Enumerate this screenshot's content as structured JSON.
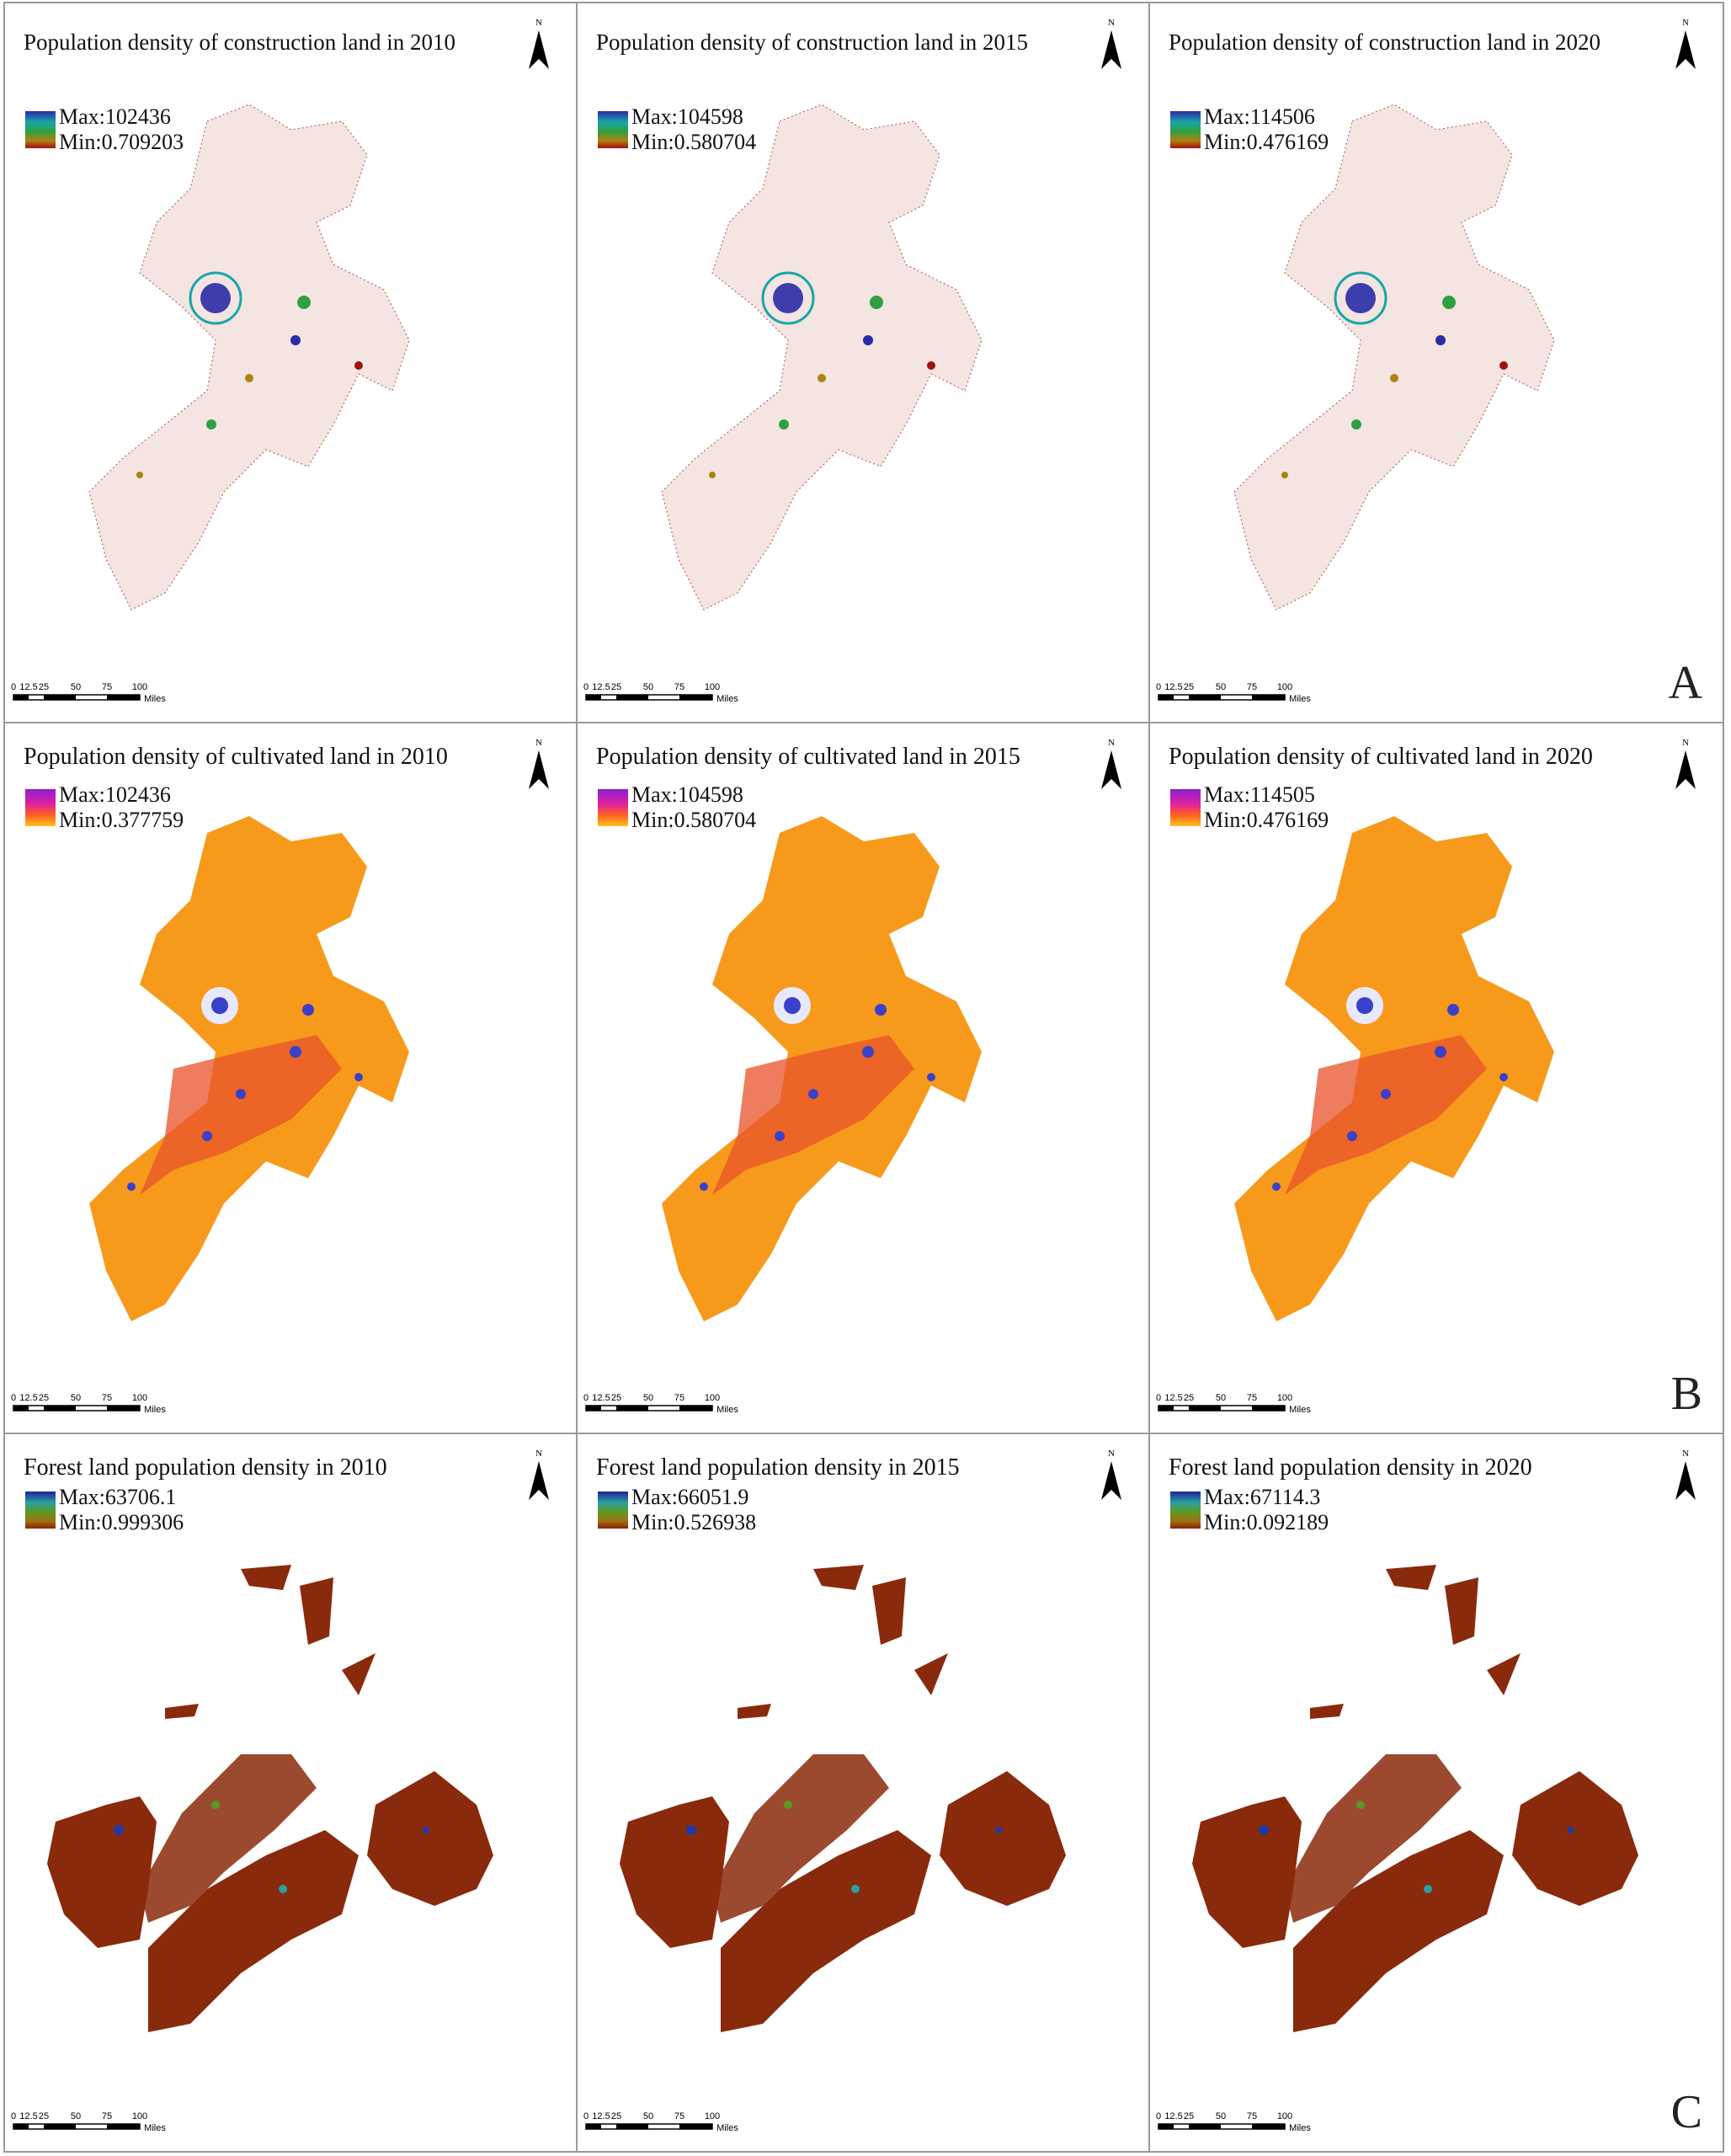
{
  "panels": [
    {
      "row": "A",
      "title": "Population density of construction land in 2010",
      "max": "Max:102436",
      "min": "Min:0.709203"
    },
    {
      "row": "A",
      "title": "Population density of construction land in 2015",
      "max": "Max:104598",
      "min": "Min:0.580704"
    },
    {
      "row": "A",
      "title": "Population density of construction land in 2020",
      "max": "Max:114506",
      "min": "Min:0.476169"
    },
    {
      "row": "B",
      "title": "Population density of cultivated land in 2010",
      "max": "Max:102436",
      "min": "Min:0.377759"
    },
    {
      "row": "B",
      "title": "Population density of cultivated land in 2015",
      "max": "Max:104598",
      "min": "Min:0.580704"
    },
    {
      "row": "B",
      "title": "Population density of cultivated land in 2020",
      "max": "Max:114505",
      "min": "Min:0.476169"
    },
    {
      "row": "C",
      "title": "Forest land population density in 2010",
      "max": "Max:63706.1",
      "min": "Min:0.999306"
    },
    {
      "row": "C",
      "title": "Forest land population density in 2015",
      "max": "Max:66051.9",
      "min": "Min:0.526938"
    },
    {
      "row": "C",
      "title": "Forest land population density in 2020",
      "max": "Max:67114.3",
      "min": "Min:0.092189"
    }
  ],
  "scale": {
    "ticks": [
      "0",
      "12.5",
      "25",
      "50",
      "75",
      "100"
    ],
    "unit": "Miles"
  },
  "north_label": "N",
  "row_letters": [
    "A",
    "B",
    "C"
  ]
}
